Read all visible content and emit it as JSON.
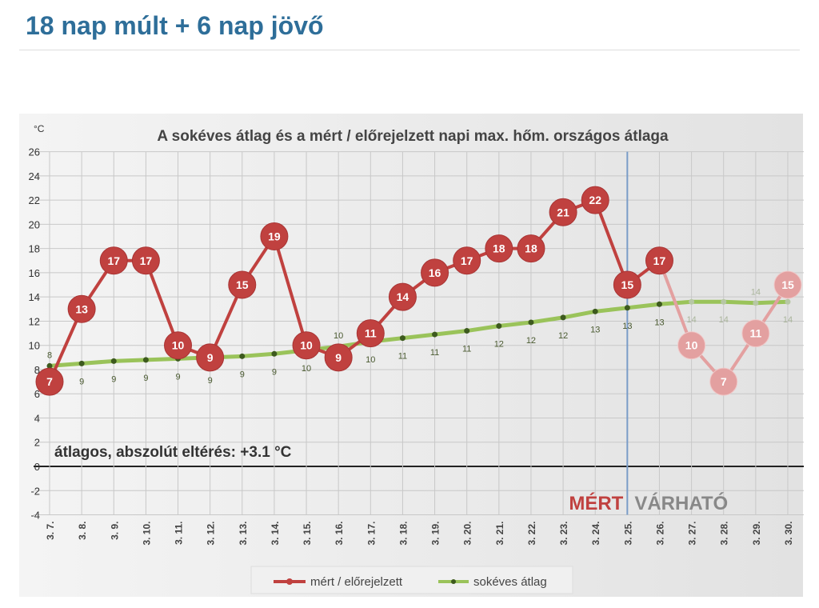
{
  "header": {
    "title": "18 nap múlt + 6 nap jövő"
  },
  "chart_data": {
    "type": "line",
    "title": "A sokéves átlag és a mért / előrejelzett napi max. hőm. országos átlaga",
    "ylabel": "°C",
    "ylim": [
      -4,
      26
    ],
    "yticks": [
      -4,
      -2,
      0,
      2,
      4,
      6,
      8,
      10,
      12,
      14,
      16,
      18,
      20,
      22,
      24,
      26
    ],
    "grid": true,
    "legend_position": "bottom",
    "categories": [
      "3. 7.",
      "3. 8.",
      "3. 9.",
      "3. 10.",
      "3. 11.",
      "3. 12.",
      "3. 13.",
      "3. 14.",
      "3. 15.",
      "3. 16.",
      "3. 17.",
      "3. 18.",
      "3. 19.",
      "3. 20.",
      "3. 21.",
      "3. 22.",
      "3. 23.",
      "3. 24.",
      "3. 25.",
      "3. 26.",
      "3. 27.",
      "3. 28.",
      "3. 29.",
      "3. 30."
    ],
    "series": [
      {
        "name": "mért / előrejelzett",
        "color": "#c0413f",
        "forecast_color": "#e3a0a0",
        "values": [
          7,
          13,
          17,
          17,
          10,
          9,
          15,
          19,
          10,
          9,
          11,
          14,
          16,
          17,
          18,
          18,
          21,
          22,
          15,
          17,
          10,
          7,
          11,
          15
        ],
        "forecast_from": "3. 27."
      },
      {
        "name": "sokéves átlag",
        "color": "#9ac35a",
        "marker_color": "#3d5a1e",
        "values": [
          8.3,
          8.5,
          8.7,
          8.8,
          8.9,
          9.0,
          9.1,
          9.3,
          9.6,
          9.9,
          10.3,
          10.6,
          10.9,
          11.2,
          11.6,
          11.9,
          12.3,
          12.8,
          13.1,
          13.4,
          13.6,
          13.6,
          13.5,
          13.6
        ],
        "labels": [
          8,
          9,
          9,
          9,
          9,
          9,
          9,
          9,
          10,
          10,
          10,
          11,
          11,
          11,
          12,
          12,
          12,
          13,
          13,
          13,
          14,
          14,
          14,
          14
        ]
      }
    ],
    "divider_at": "3. 25.",
    "divider_color": "#7a9cc8",
    "annotations": {
      "deviation": "átlagos, abszolút eltérés: +3.1 °C",
      "measured": "MÉRT",
      "expected": "VÁRHATÓ"
    }
  }
}
